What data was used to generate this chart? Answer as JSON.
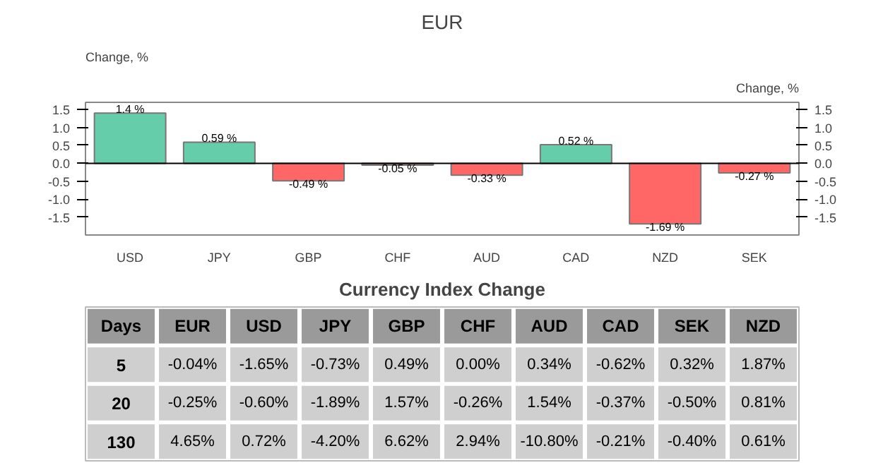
{
  "chart_data": [
    {
      "type": "bar",
      "title": "EUR",
      "ylabel": "Change, %",
      "y2label": "Change, %",
      "categories": [
        "USD",
        "JPY",
        "GBP",
        "CHF",
        "AUD",
        "CAD",
        "NZD",
        "SEK"
      ],
      "values": [
        1.4,
        0.59,
        -0.49,
        -0.05,
        -0.33,
        0.52,
        -1.69,
        -0.27
      ],
      "colors": [
        "#66cdaa",
        "#66cdaa",
        "#ff6666",
        "#ff6666",
        "#ff6666",
        "#66cdaa",
        "#ff6666",
        "#ff6666"
      ],
      "value_labels": [
        "1.4 %",
        "0.59 %",
        "-0.49 %",
        "-0.05 %",
        "-0.33 %",
        "0.52 %",
        "-1.69 %",
        "-0.27 %"
      ],
      "ylim": [
        -2.0,
        1.7
      ],
      "yticks": [
        {
          "value": -1.5,
          "label": "-1.5"
        },
        {
          "value": -1.0,
          "label": "-1.0"
        },
        {
          "value": -0.5,
          "label": "-0.5"
        },
        {
          "value": 0,
          "label": "0.0"
        },
        {
          "value": 0.5,
          "label": "0.5"
        },
        {
          "value": 1.0,
          "label": "1.0"
        },
        {
          "value": 1.5,
          "label": "1.5"
        }
      ],
      "y2lim": [
        -2.0,
        1.7
      ],
      "y2ticks": [
        {
          "value": -1.5,
          "label": "-1.5"
        },
        {
          "value": -1.0,
          "label": "-1.0"
        },
        {
          "value": -0.5,
          "label": "-0.5"
        },
        {
          "value": 0,
          "label": "0.0"
        },
        {
          "value": 0.5,
          "label": "0.5"
        },
        {
          "value": 1.0,
          "label": "1.0"
        },
        {
          "value": 1.5,
          "label": "1.5"
        }
      ],
      "ref_lines": [
        {
          "axis": "y",
          "value": 0,
          "color": "#000000"
        }
      ],
      "grid": false
    },
    {
      "type": "other",
      "title": "Currency Index Change",
      "ylabel": "Days",
      "color": "#cfcfcf",
      "categories": [
        "EUR",
        "USD",
        "JPY",
        "GBP",
        "CHF",
        "AUD",
        "CAD",
        "SEK",
        "NZD"
      ],
      "y_categories": [
        "5",
        "20",
        "130"
      ],
      "cell_labels": [
        [
          "-0.04%",
          "-1.65%",
          "-0.73%",
          "0.49%",
          "0.00%",
          "0.34%",
          "-0.62%",
          "0.32%",
          "1.87%"
        ],
        [
          "-0.25%",
          "-0.60%",
          "-1.89%",
          "1.57%",
          "-0.26%",
          "1.54%",
          "-0.37%",
          "-0.50%",
          "0.81%"
        ],
        [
          "4.65%",
          "0.72%",
          "-4.20%",
          "6.62%",
          "2.94%",
          "-10.80%",
          "-0.21%",
          "-0.40%",
          "0.61%"
        ]
      ]
    }
  ]
}
